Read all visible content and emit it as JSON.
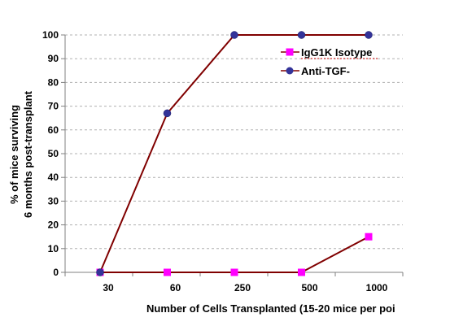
{
  "chart_data": {
    "type": "line",
    "categories": [
      "30",
      "60",
      "250",
      "500",
      "1000"
    ],
    "series": [
      {
        "name": "IgG1K Isotype",
        "values": [
          0,
          0,
          0,
          0,
          15
        ],
        "marker": "square",
        "marker_color": "#ff00ff",
        "line_color": "#800000"
      },
      {
        "name": "Anti-TGF-",
        "values": [
          0,
          67,
          100,
          100,
          100
        ],
        "marker": "circle",
        "marker_color": "#333399",
        "line_color": "#800000"
      }
    ],
    "title": "",
    "xlabel": "Number of Cells Transplanted (15-20 mice per poi",
    "ylabel_lines": [
      "% of mice surviving",
      "6 months  post-transplant"
    ],
    "ylim": [
      0,
      100
    ],
    "yticks": [
      0,
      10,
      20,
      30,
      40,
      50,
      60,
      70,
      80,
      90,
      100
    ],
    "grid": "horizontal-dashed",
    "legend_position": "top-right"
  }
}
